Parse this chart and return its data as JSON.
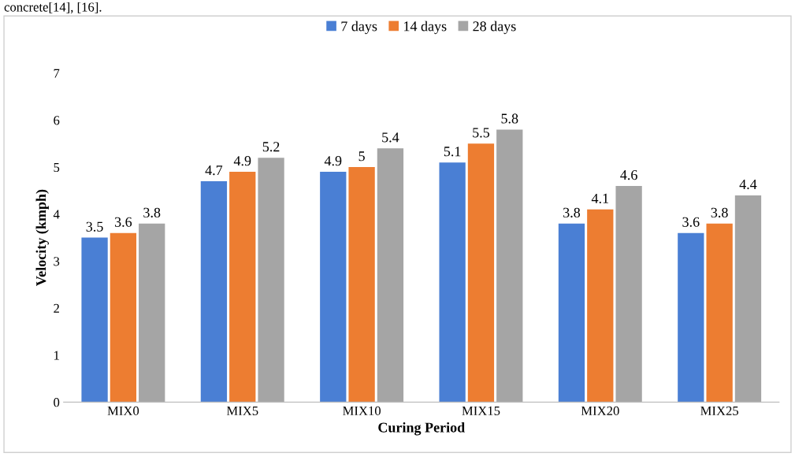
{
  "chart_data": {
    "type": "bar",
    "xlabel": "Curing Period",
    "ylabel": "Velocity (kmph)",
    "categories": [
      "MIX0",
      "MIX5",
      "MIX10",
      "MIX15",
      "MIX20",
      "MIX25"
    ],
    "series": [
      {
        "name": "7 days",
        "color": "#4a7fd4",
        "values": [
          3.5,
          4.7,
          4.9,
          5.1,
          3.8,
          3.6
        ]
      },
      {
        "name": "14 days",
        "color": "#ed7d31",
        "values": [
          3.6,
          4.9,
          5,
          5.5,
          4.1,
          3.8
        ]
      },
      {
        "name": "28 days",
        "color": "#a5a5a5",
        "values": [
          3.8,
          5.2,
          5.4,
          5.8,
          4.6,
          4.4
        ]
      }
    ],
    "ylim": [
      0,
      7
    ],
    "yticks": [
      0,
      1,
      2,
      3,
      4,
      5,
      6,
      7
    ],
    "grid": false,
    "legend": "top",
    "data_labels": true,
    "annotations": [
      "concrete[14], [16]."
    ]
  }
}
